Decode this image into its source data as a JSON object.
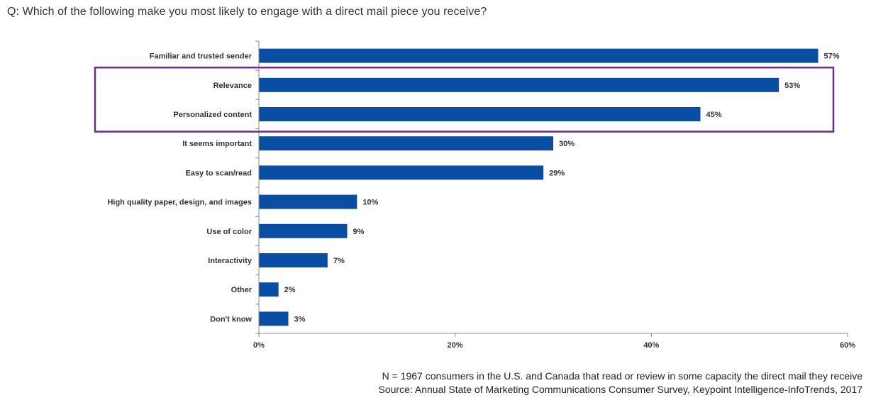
{
  "question": "Q: Which of the following make you most likely to engage with a direct mail piece you receive?",
  "note": "N = 1967 consumers in the U.S. and Canada that read or review in some capacity the direct mail they receive",
  "source": "Source:  Annual State of Marketing Communications Consumer Survey, Keypoint Intelligence-InfoTrends, 2017",
  "chart_data": {
    "type": "bar",
    "orientation": "horizontal",
    "categories": [
      "Familiar and trusted sender",
      "Relevance",
      "Personalized content",
      "It seems important",
      "Easy to scan/read",
      "High quality paper, design, and images",
      "Use of color",
      "Interactivity",
      "Other",
      "Don't know"
    ],
    "values": [
      57,
      53,
      45,
      30,
      29,
      10,
      9,
      7,
      2,
      3
    ],
    "value_labels": [
      "57%",
      "53%",
      "45%",
      "30%",
      "29%",
      "10%",
      "9%",
      "7%",
      "2%",
      "3%"
    ],
    "xlim": [
      0,
      60
    ],
    "xticks": [
      0,
      20,
      40,
      60
    ],
    "xtick_labels": [
      "0%",
      "20%",
      "40%",
      "60%"
    ],
    "grid": false,
    "bar_color": "#0a4ea3",
    "highlight_box": {
      "categories": [
        "Relevance",
        "Personalized content"
      ],
      "color": "#6a2c91"
    }
  }
}
